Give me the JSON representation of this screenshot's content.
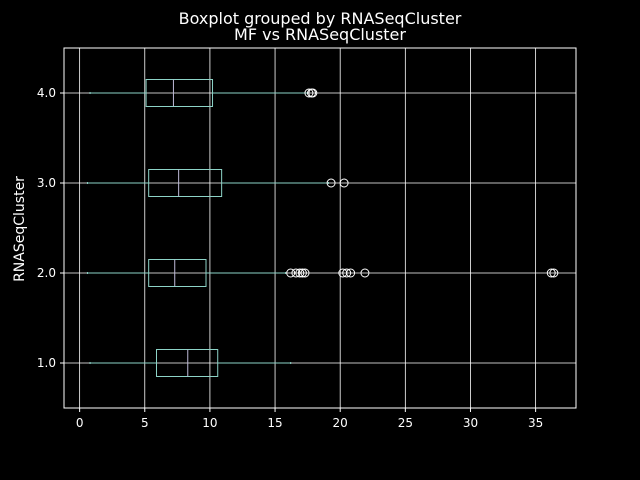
{
  "chart_data": {
    "type": "boxplot",
    "title": "Boxplot grouped by RNASeqCluster",
    "subtitle": "MF vs RNASeqCluster",
    "xlabel": "",
    "ylabel": "RNASeqCluster",
    "orientation": "horizontal",
    "xlim": [
      -1.2,
      38.1
    ],
    "xticks": [
      0,
      5,
      10,
      15,
      20,
      25,
      30,
      35
    ],
    "categories": [
      "1.0",
      "2.0",
      "3.0",
      "4.0"
    ],
    "grid": true,
    "boxes": [
      {
        "category": "1.0",
        "whisker_low": 0.8,
        "q1": 5.9,
        "median": 8.3,
        "q3": 10.6,
        "whisker_high": 16.2,
        "outliers": []
      },
      {
        "category": "2.0",
        "whisker_low": 0.6,
        "q1": 5.3,
        "median": 7.3,
        "q3": 9.7,
        "whisker_high": 15.8,
        "outliers": [
          16.2,
          16.6,
          16.9,
          17.1,
          17.3,
          20.2,
          20.5,
          20.8,
          21.9,
          36.2,
          36.4
        ]
      },
      {
        "category": "3.0",
        "whisker_low": 0.6,
        "q1": 5.3,
        "median": 7.6,
        "q3": 10.9,
        "whisker_high": 19.1,
        "outliers": [
          19.3,
          20.3
        ]
      },
      {
        "category": "4.0",
        "whisker_low": 0.8,
        "q1": 5.1,
        "median": 7.2,
        "q3": 10.2,
        "whisker_high": 17.5,
        "outliers": [
          17.6,
          17.8,
          17.9
        ]
      }
    ],
    "colors": {
      "background": "#000000",
      "axes": "#ffffff",
      "grid": "#ffffff",
      "box": "#8dd3c7",
      "median": "#bfbbd9",
      "outlier": "#ffffff",
      "text": "#ffffff"
    }
  }
}
